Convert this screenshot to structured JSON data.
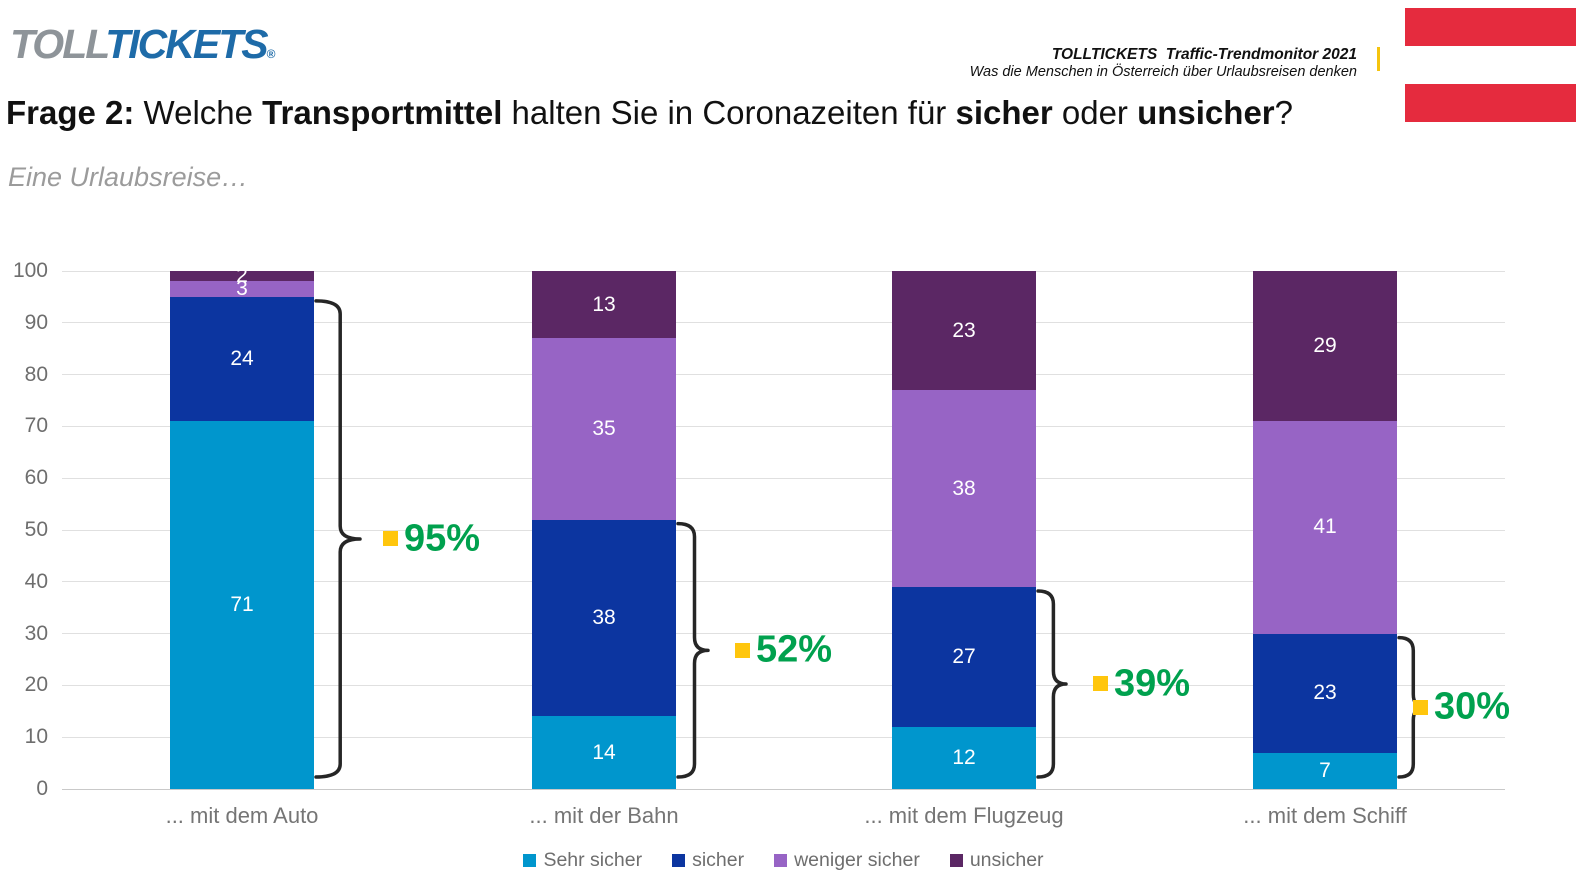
{
  "header": {
    "logo": {
      "part1": "TOLL",
      "part2": "TICKETS",
      "registered": "®"
    },
    "trendmonitor_line1": "TOLLTICKETS  Traffic-Trendmonitor 2021",
    "trendmonitor_line2": "Was die Menschen in Österreich über Urlaubsreisen denken"
  },
  "title": {
    "parts": [
      {
        "text": "Frage 2:",
        "bold": true
      },
      {
        "text": " Welche ",
        "bold": false
      },
      {
        "text": "Transportmittel",
        "bold": true
      },
      {
        "text": " halten Sie in Coronazeiten für ",
        "bold": false
      },
      {
        "text": "sicher",
        "bold": true
      },
      {
        "text": " oder ",
        "bold": false
      },
      {
        "text": "unsicher",
        "bold": true
      },
      {
        "text": "?",
        "bold": false
      }
    ]
  },
  "subtitle": "Eine Urlaubsreise…",
  "chart_data": {
    "type": "bar",
    "stacked": true,
    "title": "Frage 2: Welche Transportmittel halten Sie in Coronazeiten für sicher oder unsicher?",
    "categories": [
      "... mit dem Auto",
      "... mit der Bahn",
      "... mit dem Flugzeug",
      "... mit dem Schiff"
    ],
    "series": [
      {
        "name": "Sehr sicher",
        "color": "#0096CD",
        "values": [
          71,
          14,
          12,
          7
        ]
      },
      {
        "name": "sicher",
        "color": "#0C35A0",
        "values": [
          24,
          38,
          27,
          23
        ]
      },
      {
        "name": "weniger sicher",
        "color": "#9764C5",
        "values": [
          3,
          35,
          38,
          41
        ]
      },
      {
        "name": "unsicher",
        "color": "#5B2764",
        "values": [
          2,
          13,
          23,
          29
        ]
      }
    ],
    "annotations": [
      {
        "label": "95%",
        "value": 95,
        "covers": "Sehr sicher + sicher"
      },
      {
        "label": "52%",
        "value": 52,
        "covers": "Sehr sicher + sicher"
      },
      {
        "label": "39%",
        "value": 39,
        "covers": "Sehr sicher + sicher"
      },
      {
        "label": "30%",
        "value": 30,
        "covers": "Sehr sicher + sicher"
      }
    ],
    "ylim": [
      0,
      100
    ],
    "yticks": [
      0,
      10,
      20,
      30,
      40,
      50,
      60,
      70,
      80,
      90,
      100
    ],
    "xlabel": "",
    "ylabel": "",
    "grid": true,
    "legend_position": "bottom"
  },
  "colors": {
    "accent_green": "#00A14E",
    "accent_yellow": "#FFC60D",
    "flag_red": "#E52B3E",
    "logo_gray": "#8E9499",
    "logo_blue": "#1E6BA8",
    "bracket": "#262626",
    "axis_text": "#6E6E6E",
    "gridline": "#E0E0E0"
  }
}
